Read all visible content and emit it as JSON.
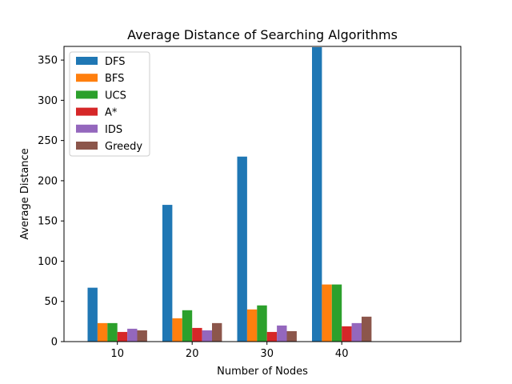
{
  "chart_data": {
    "type": "bar",
    "title": "Average Distance of Searching Algorithms",
    "xlabel": "Number of Nodes",
    "ylabel": "Average Distance",
    "categories": [
      "10",
      "20",
      "30",
      "40"
    ],
    "ylim": [
      0,
      367
    ],
    "yticks": [
      0,
      50,
      100,
      150,
      200,
      250,
      300,
      350
    ],
    "legend_position": "upper-left",
    "grid": false,
    "series": [
      {
        "name": "DFS",
        "color": "#1f77b4",
        "values": [
          67,
          170,
          230,
          366
        ]
      },
      {
        "name": "BFS",
        "color": "#ff7f0e",
        "values": [
          23,
          29,
          40,
          71
        ]
      },
      {
        "name": "UCS",
        "color": "#2ca02c",
        "values": [
          23,
          39,
          45,
          71
        ]
      },
      {
        "name": "A*",
        "color": "#d62728",
        "values": [
          12,
          17,
          12,
          19
        ]
      },
      {
        "name": "IDS",
        "color": "#9467bd",
        "values": [
          16,
          14,
          20,
          23
        ]
      },
      {
        "name": "Greedy",
        "color": "#8c564b",
        "values": [
          14,
          23,
          13,
          31
        ]
      }
    ]
  }
}
